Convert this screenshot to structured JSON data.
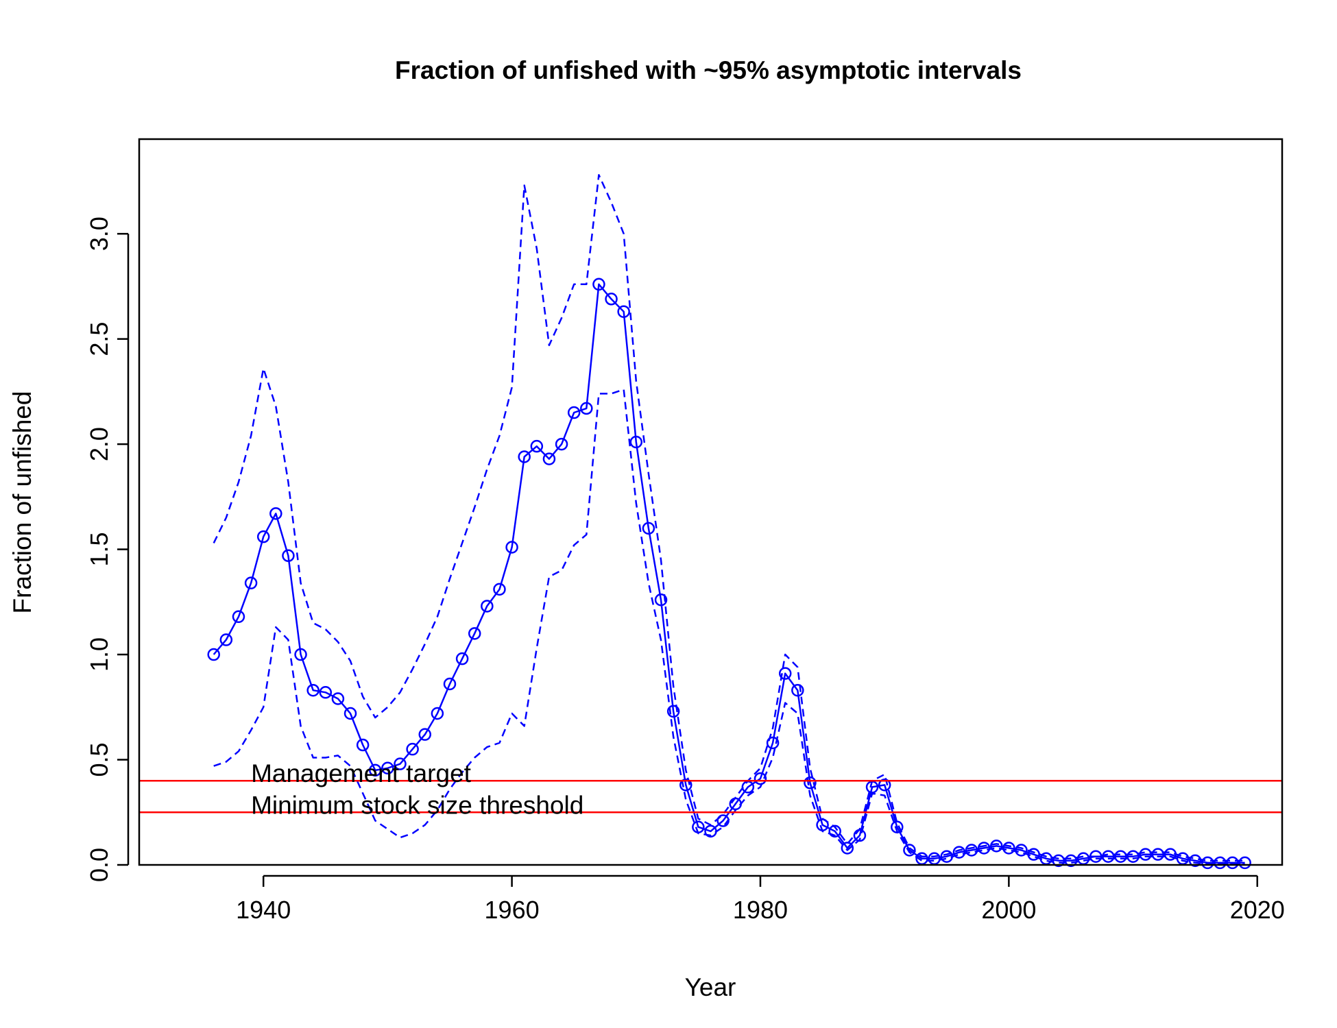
{
  "chart_data": {
    "type": "line",
    "title": "Fraction of unfished with ~95% asymptotic intervals",
    "xlabel": "Year",
    "ylabel": "Fraction of unfished",
    "xlim": [
      1930,
      2022
    ],
    "ylim": [
      0,
      3.45
    ],
    "x_ticks": [
      1940,
      1960,
      1980,
      2000,
      2020
    ],
    "y_ticks": [
      0.0,
      0.5,
      1.0,
      1.5,
      2.0,
      2.5,
      3.0
    ],
    "x_tick_labels": [
      "1940",
      "1960",
      "1980",
      "2000",
      "2020"
    ],
    "y_tick_labels": [
      "0.0",
      "0.5",
      "1.0",
      "1.5",
      "2.0",
      "2.5",
      "3.0"
    ],
    "grid": false,
    "colors": {
      "series": "#0000ff",
      "reference": "#ff0000"
    },
    "series": [
      {
        "role": "estimate",
        "style": "solid line with open circles",
        "x": [
          1936,
          1937,
          1938,
          1939,
          1940,
          1941,
          1942,
          1943,
          1944,
          1945,
          1946,
          1947,
          1948,
          1949,
          1950,
          1951,
          1952,
          1953,
          1954,
          1955,
          1956,
          1957,
          1958,
          1959,
          1960,
          1961,
          1962,
          1963,
          1964,
          1965,
          1966,
          1967,
          1968,
          1969,
          1970,
          1971,
          1972,
          1973,
          1974,
          1975,
          1976,
          1977,
          1978,
          1979,
          1980,
          1981,
          1982,
          1983,
          1984,
          1985,
          1986,
          1987,
          1988,
          1989,
          1990,
          1991,
          1992,
          1993,
          1994,
          1995,
          1996,
          1997,
          1998,
          1999,
          2000,
          2001,
          2002,
          2003,
          2004,
          2005,
          2006,
          2007,
          2008,
          2009,
          2010,
          2011,
          2012,
          2013,
          2014,
          2015,
          2016,
          2017,
          2018,
          2019
        ],
        "values": [
          1.0,
          1.07,
          1.18,
          1.34,
          1.56,
          1.67,
          1.47,
          1.0,
          0.83,
          0.82,
          0.79,
          0.72,
          0.57,
          0.45,
          0.46,
          0.48,
          0.55,
          0.62,
          0.72,
          0.86,
          0.98,
          1.1,
          1.23,
          1.31,
          1.51,
          1.94,
          1.99,
          1.93,
          2.0,
          2.15,
          2.17,
          2.76,
          2.69,
          2.63,
          2.01,
          1.6,
          1.26,
          0.73,
          0.38,
          0.18,
          0.16,
          0.21,
          0.29,
          0.37,
          0.41,
          0.58,
          0.91,
          0.83,
          0.39,
          0.19,
          0.16,
          0.08,
          0.14,
          0.37,
          0.38,
          0.18,
          0.07,
          0.03,
          0.03,
          0.04,
          0.06,
          0.07,
          0.08,
          0.09,
          0.08,
          0.07,
          0.05,
          0.03,
          0.02,
          0.02,
          0.03,
          0.04,
          0.04,
          0.04,
          0.04,
          0.05,
          0.05,
          0.05,
          0.03,
          0.02,
          0.01,
          0.01,
          0.01,
          0.01
        ]
      },
      {
        "role": "upper_95",
        "style": "dashed",
        "x": [
          1936,
          1937,
          1938,
          1939,
          1940,
          1941,
          1942,
          1943,
          1944,
          1945,
          1946,
          1947,
          1948,
          1949,
          1950,
          1951,
          1952,
          1953,
          1954,
          1955,
          1956,
          1957,
          1958,
          1959,
          1960,
          1961,
          1962,
          1963,
          1964,
          1965,
          1966,
          1967,
          1968,
          1969,
          1970,
          1971,
          1972,
          1973,
          1974,
          1975,
          1976,
          1977,
          1978,
          1979,
          1980,
          1981,
          1982,
          1983,
          1984,
          1985,
          1986,
          1987,
          1988,
          1989,
          1990,
          1991,
          1992,
          1993,
          1994,
          1995,
          1996,
          1997,
          1998,
          1999,
          2000,
          2001,
          2002,
          2003,
          2004,
          2005,
          2006,
          2007,
          2008,
          2009,
          2010,
          2011,
          2012,
          2013,
          2014,
          2015,
          2016,
          2017,
          2018,
          2019
        ],
        "values": [
          1.53,
          1.65,
          1.82,
          2.04,
          2.36,
          2.18,
          1.82,
          1.34,
          1.15,
          1.12,
          1.06,
          0.97,
          0.8,
          0.7,
          0.75,
          0.82,
          0.93,
          1.05,
          1.18,
          1.36,
          1.53,
          1.7,
          1.88,
          2.04,
          2.27,
          3.23,
          2.93,
          2.47,
          2.6,
          2.76,
          2.76,
          3.28,
          3.15,
          3.0,
          2.3,
          1.86,
          1.45,
          0.85,
          0.45,
          0.22,
          0.19,
          0.24,
          0.32,
          0.4,
          0.46,
          0.65,
          1.0,
          0.94,
          0.46,
          0.22,
          0.18,
          0.1,
          0.17,
          0.4,
          0.43,
          0.2,
          0.08,
          0.04,
          0.04,
          0.05,
          0.07,
          0.08,
          0.09,
          0.1,
          0.09,
          0.08,
          0.06,
          0.04,
          0.03,
          0.03,
          0.04,
          0.04,
          0.05,
          0.05,
          0.05,
          0.06,
          0.06,
          0.06,
          0.04,
          0.03,
          0.02,
          0.02,
          0.02,
          0.02
        ]
      },
      {
        "role": "lower_95",
        "style": "dashed",
        "x": [
          1936,
          1937,
          1938,
          1939,
          1940,
          1941,
          1942,
          1943,
          1944,
          1945,
          1946,
          1947,
          1948,
          1949,
          1950,
          1951,
          1952,
          1953,
          1954,
          1955,
          1956,
          1957,
          1958,
          1959,
          1960,
          1961,
          1962,
          1963,
          1964,
          1965,
          1966,
          1967,
          1968,
          1969,
          1970,
          1971,
          1972,
          1973,
          1974,
          1975,
          1976,
          1977,
          1978,
          1979,
          1980,
          1981,
          1982,
          1983,
          1984,
          1985,
          1986,
          1987,
          1988,
          1989,
          1990,
          1991,
          1992,
          1993,
          1994,
          1995,
          1996,
          1997,
          1998,
          1999,
          2000,
          2001,
          2002,
          2003,
          2004,
          2005,
          2006,
          2007,
          2008,
          2009,
          2010,
          2011,
          2012,
          2013,
          2014,
          2015,
          2016,
          2017,
          2018,
          2019
        ],
        "values": [
          0.47,
          0.49,
          0.54,
          0.64,
          0.75,
          1.13,
          1.07,
          0.66,
          0.51,
          0.51,
          0.52,
          0.47,
          0.34,
          0.21,
          0.17,
          0.13,
          0.15,
          0.19,
          0.26,
          0.36,
          0.44,
          0.51,
          0.56,
          0.58,
          0.72,
          0.66,
          1.03,
          1.37,
          1.4,
          1.52,
          1.57,
          2.24,
          2.24,
          2.26,
          1.72,
          1.34,
          1.07,
          0.61,
          0.31,
          0.15,
          0.14,
          0.18,
          0.26,
          0.33,
          0.37,
          0.51,
          0.77,
          0.72,
          0.33,
          0.16,
          0.14,
          0.07,
          0.12,
          0.34,
          0.33,
          0.16,
          0.06,
          0.02,
          0.02,
          0.03,
          0.05,
          0.06,
          0.07,
          0.08,
          0.07,
          0.06,
          0.04,
          0.02,
          0.01,
          0.01,
          0.02,
          0.03,
          0.03,
          0.03,
          0.03,
          0.04,
          0.04,
          0.04,
          0.02,
          0.01,
          0.005,
          0.005,
          0.005,
          0.005
        ]
      }
    ],
    "reference_lines": [
      {
        "label": "Management target",
        "y": 0.4
      },
      {
        "label": "Minimum stock size threshold",
        "y": 0.25
      }
    ],
    "reference_label_x": 1939
  }
}
